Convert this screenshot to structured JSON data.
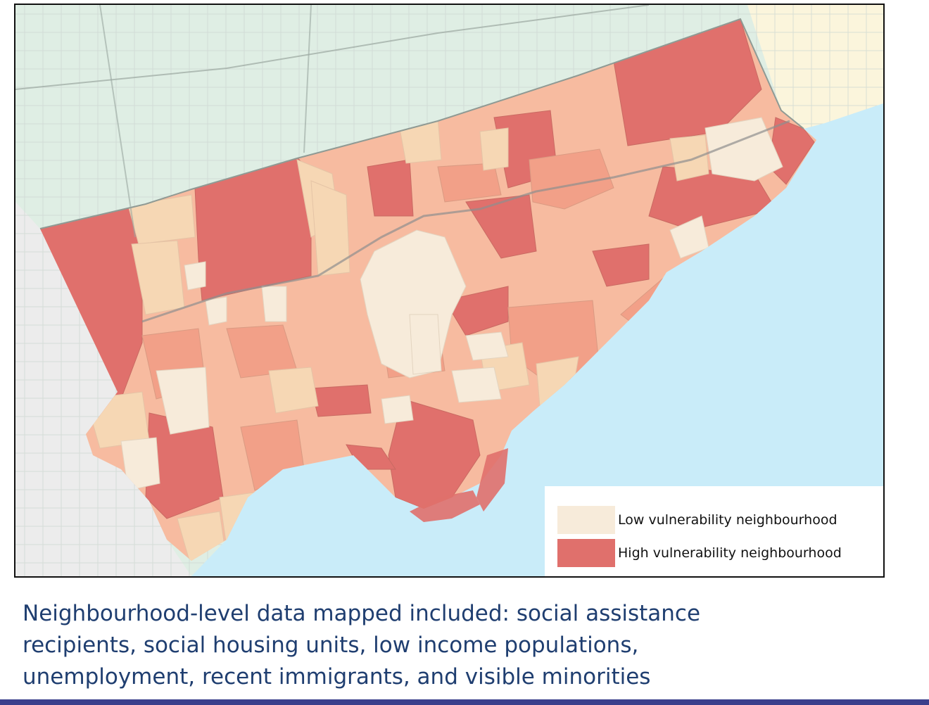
{
  "map": {
    "legend": {
      "items": [
        {
          "label": "Low vulnerability neighbourhood",
          "color": "#f7ebda"
        },
        {
          "label": "High vulnerability neighbourhood",
          "color": "#e0706c"
        }
      ]
    },
    "colors": {
      "land_outside": "#dfeee4",
      "land_east": "#fbf5dc",
      "land_west": "#ececec",
      "lake": "#c9ecf9",
      "low": "#f7ebda",
      "mid_low": "#f6d7b4",
      "mid": "#f7bba0",
      "mid_high": "#f2a088",
      "high": "#e0706c",
      "roads": "#9aa6a0"
    }
  },
  "caption": {
    "lines": [
      "Neighbourhood-level data mapped included: social assistance",
      "recipients, social housing units, low income populations,",
      "unemployment, recent immigrants, and visible minorities"
    ]
  }
}
